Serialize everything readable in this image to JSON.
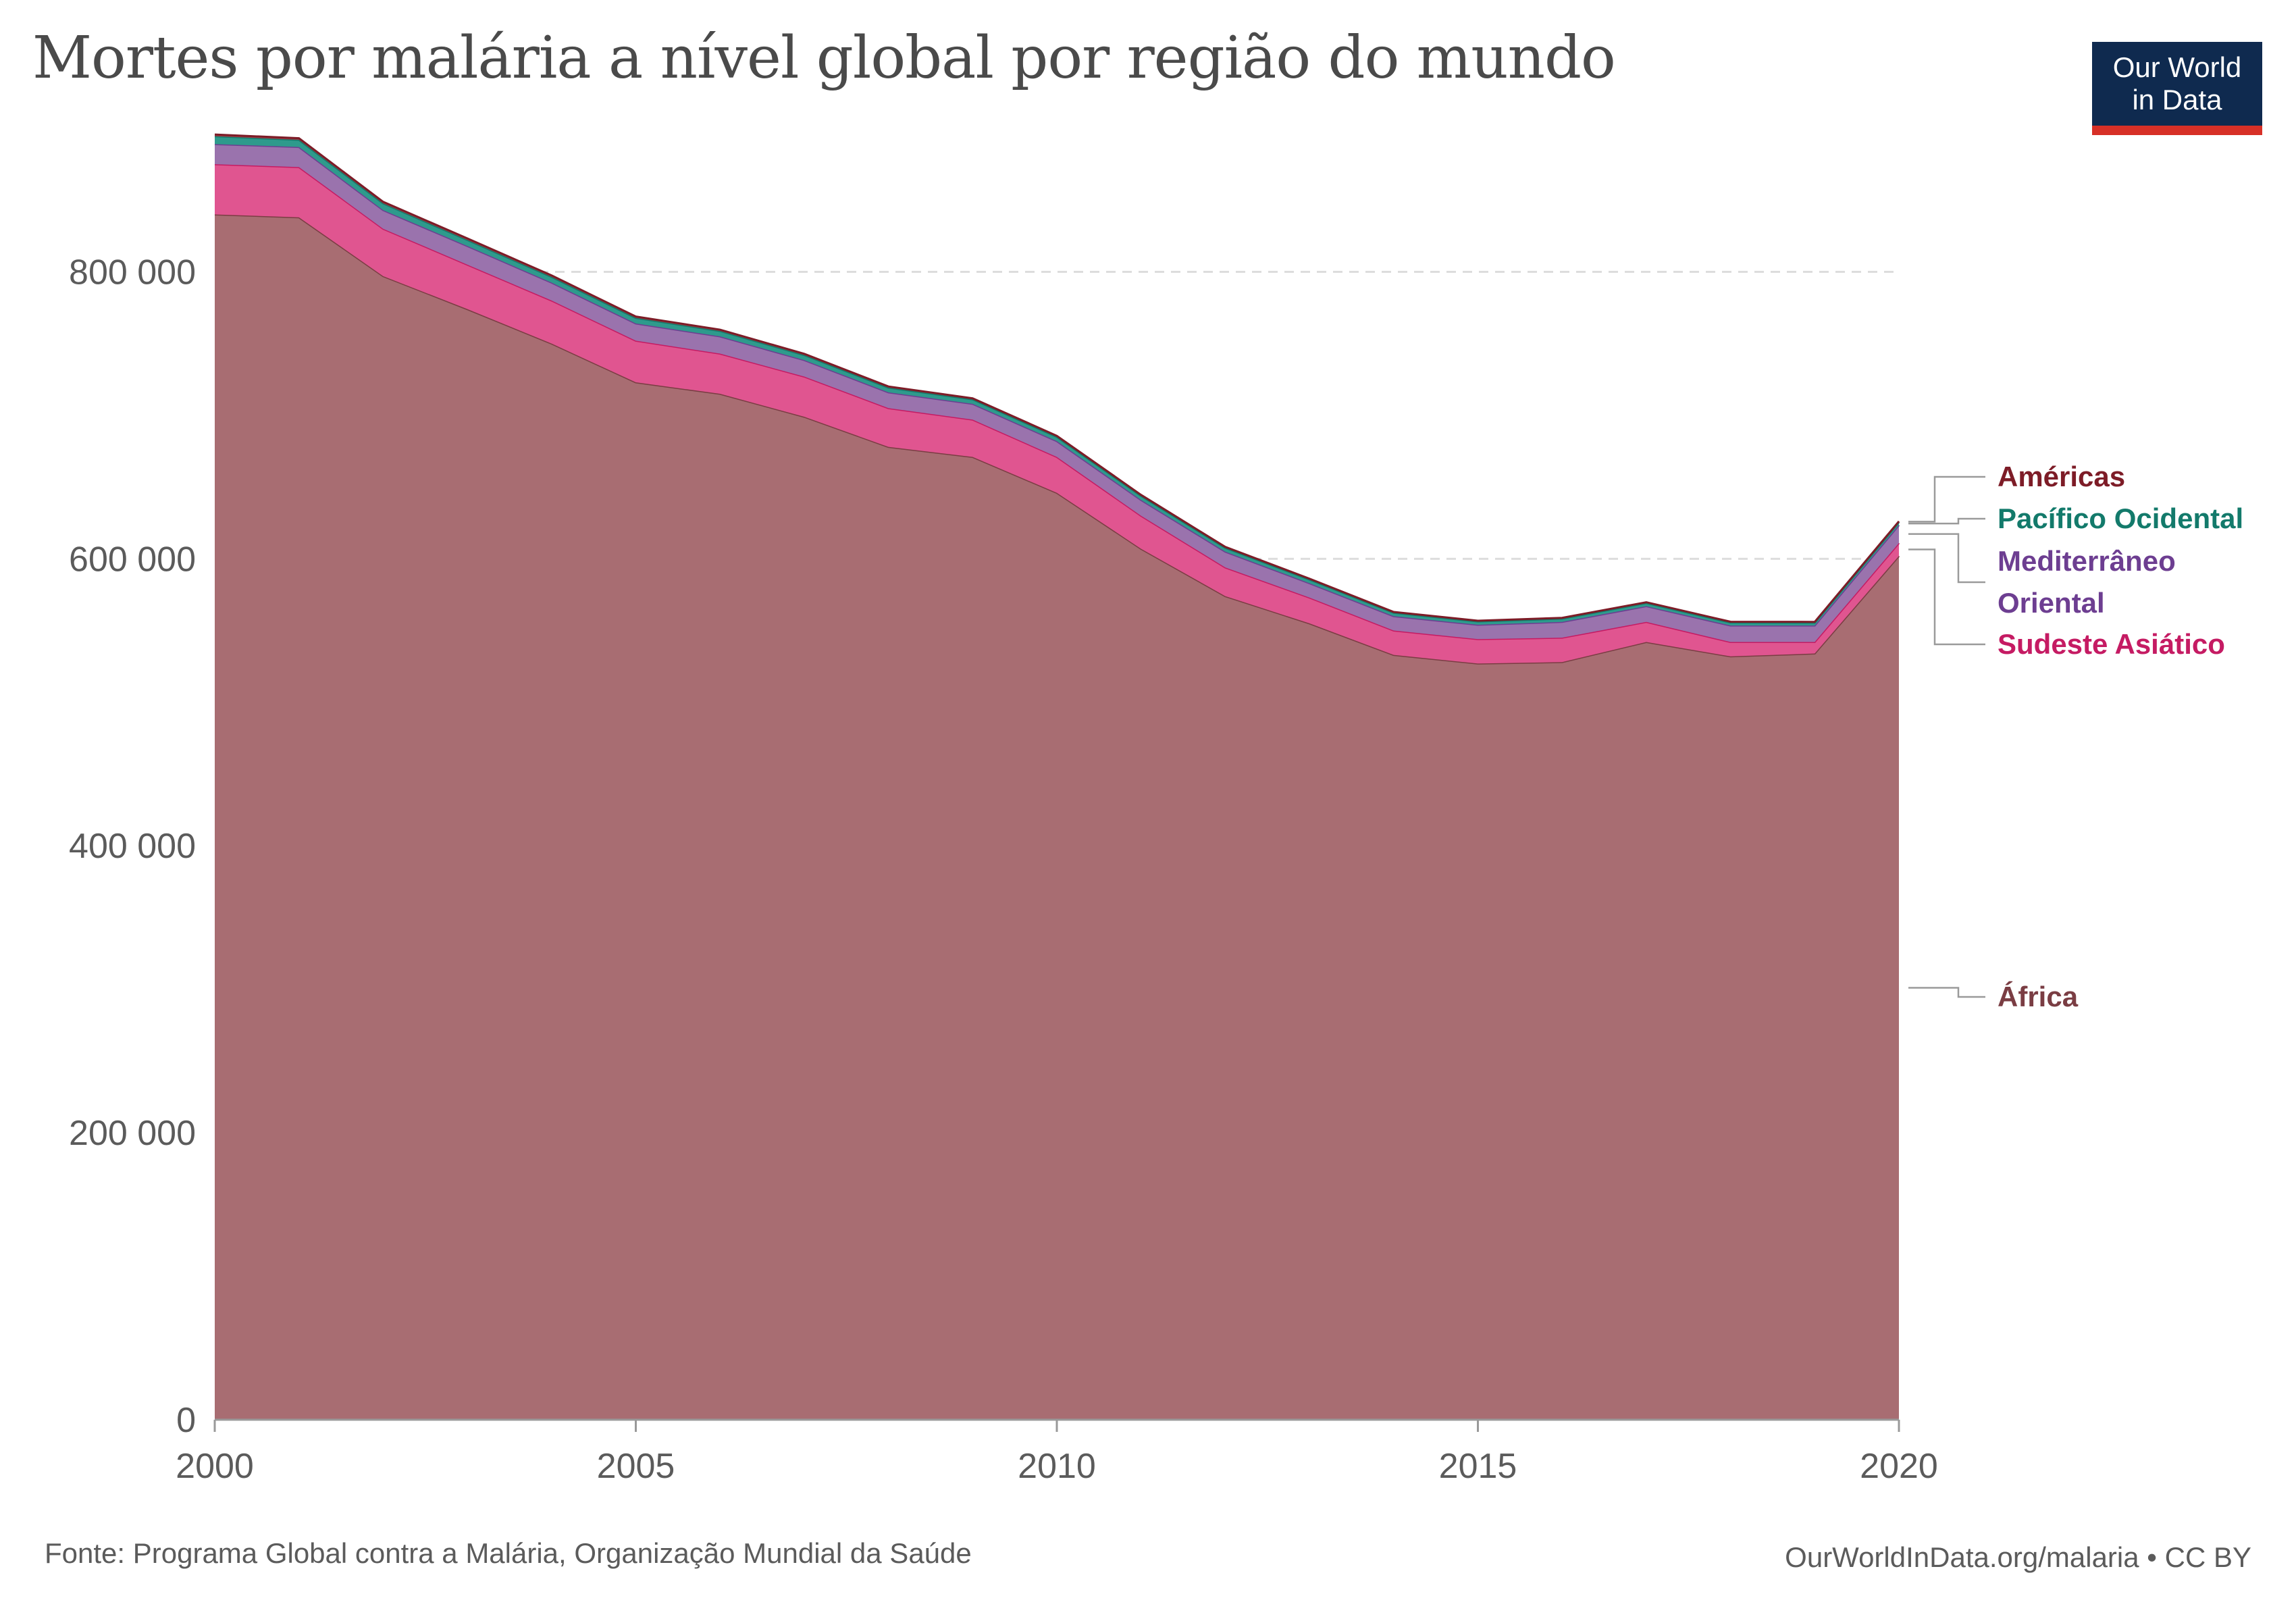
{
  "header": {
    "title": "Mortes por malária a nível global por região do mundo",
    "logo_line1": "Our World",
    "logo_line2": "in Data"
  },
  "footer": {
    "source": "Fonte: Programa Global contra a Malária, Organização Mundial da Saúde",
    "attribution": "OurWorldInData.org/malaria • CC BY"
  },
  "colors": {
    "africa": "#a86d72",
    "africa_line": "#7a3d43",
    "sudeste": "#e05590",
    "sudeste_line": "#c51b63",
    "mediterraneo": "#9a73ad",
    "mediterraneo_line": "#6d3e91",
    "pacifico": "#2e9a8c",
    "pacifico_line": "#137a6b",
    "americas": "#a3404a",
    "americas_line": "#7d1c27",
    "grid": "#dddddd",
    "axis": "#999999"
  },
  "chart_data": {
    "type": "area",
    "stacked": true,
    "title": "Mortes por malária a nível global por região do mundo",
    "xlabel": "",
    "ylabel": "",
    "x": [
      2000,
      2001,
      2002,
      2003,
      2004,
      2005,
      2006,
      2007,
      2008,
      2009,
      2010,
      2011,
      2012,
      2013,
      2014,
      2015,
      2016,
      2017,
      2018,
      2019,
      2020
    ],
    "xlim": [
      2000,
      2020
    ],
    "ylim": [
      0,
      900000
    ],
    "x_ticks": [
      "2000",
      "2005",
      "2010",
      "2015",
      "2020"
    ],
    "x_tick_values": [
      2000,
      2005,
      2010,
      2015,
      2020
    ],
    "y_ticks": [
      "0",
      "200 000",
      "400 000",
      "600 000",
      "800 000"
    ],
    "y_tick_values": [
      0,
      200000,
      400000,
      600000,
      800000
    ],
    "grid": true,
    "series": [
      {
        "name": "África",
        "key": "africa",
        "label": "África",
        "values": [
          840000,
          838000,
          797000,
          774000,
          750000,
          723000,
          715000,
          699000,
          678000,
          671000,
          646000,
          607000,
          574000,
          555000,
          533000,
          527000,
          528000,
          542000,
          532000,
          534000,
          602000
        ]
      },
      {
        "name": "Sudeste Asiático",
        "key": "sudeste",
        "label": "Sudeste Asiático",
        "values": [
          35000,
          35000,
          33000,
          31000,
          30000,
          29000,
          28000,
          28000,
          27000,
          26000,
          25000,
          23000,
          20000,
          18000,
          17000,
          17000,
          17000,
          14000,
          10000,
          8000,
          9000
        ]
      },
      {
        "name": "Mediterrâneo Oriental",
        "key": "mediterraneo",
        "label_lines": [
          "Mediterrâneo",
          "Oriental"
        ],
        "values": [
          14000,
          14000,
          13000,
          13000,
          12500,
          12000,
          12000,
          11500,
          11000,
          11000,
          11000,
          11000,
          11000,
          10000,
          10000,
          10000,
          11000,
          11000,
          11500,
          11500,
          12500
        ]
      },
      {
        "name": "Pacífico Ocidental",
        "key": "pacifico",
        "label": "Pacífico Ocidental",
        "values": [
          5500,
          5000,
          4700,
          4200,
          4000,
          3900,
          3800,
          3500,
          3300,
          3100,
          3000,
          2900,
          2700,
          2600,
          2400,
          2300,
          2300,
          2200,
          2100,
          2000,
          2100
        ]
      },
      {
        "name": "Américas",
        "key": "americas",
        "label": "Américas",
        "values": [
          1200,
          1100,
          1100,
          1050,
          1000,
          950,
          900,
          850,
          800,
          750,
          700,
          650,
          600,
          550,
          550,
          550,
          550,
          550,
          550,
          550,
          550
        ]
      }
    ]
  }
}
